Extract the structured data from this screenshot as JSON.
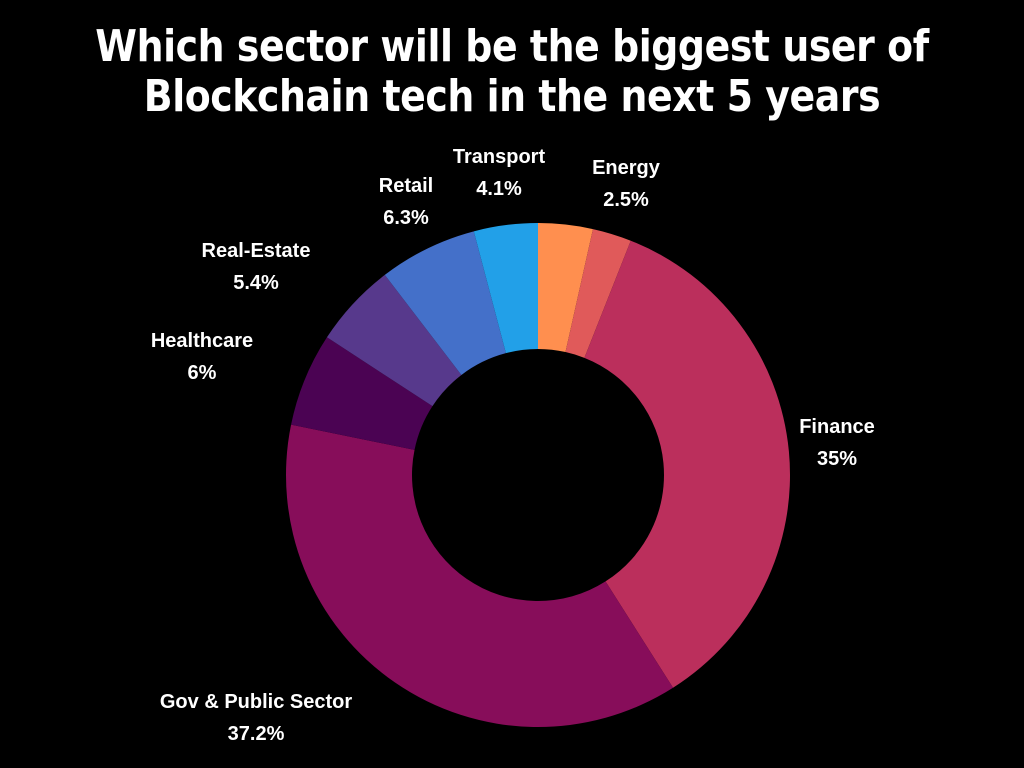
{
  "chart_data": {
    "type": "pie",
    "variant": "donut",
    "title": "Which sector will be the biggest user of Blockchain tech in the next 5 years",
    "categories": [
      "Energy",
      "Finance",
      "Gov & Public Sector",
      "Healthcare",
      "Real-Estate",
      "Retail",
      "Transport"
    ],
    "values": [
      2.5,
      35,
      37.2,
      6,
      5.4,
      6.3,
      4.1
    ],
    "value_labels": [
      "2.5%",
      "35%",
      "37.2%",
      "6%",
      "5.4%",
      "6.3%",
      "4.1%"
    ],
    "colors": [
      "#e05a5a",
      "#bb2f5c",
      "#870d5a",
      "#4b0353",
      "#57398c",
      "#4470c9",
      "#22a0e8"
    ],
    "leading_wedge": {
      "value": 3.5,
      "color": "#ff8f4f",
      "label": ""
    },
    "legend": "none"
  }
}
